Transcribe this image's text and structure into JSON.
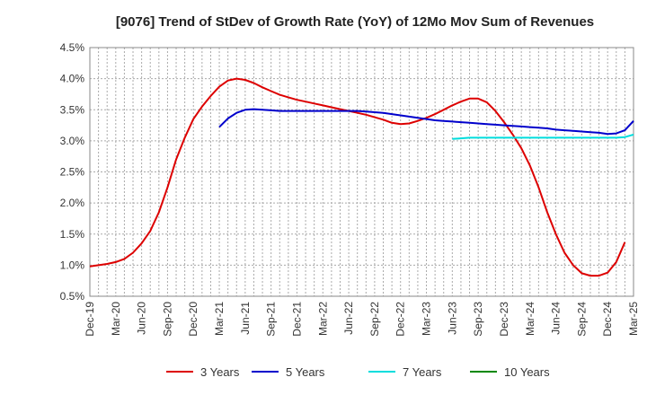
{
  "chart_data": {
    "type": "line",
    "title": "[9076]  Trend of StDev of Growth Rate (YoY) of 12Mo Mov Sum of Revenues",
    "xlabel": "",
    "ylabel": "",
    "ylim": [
      0.5,
      4.5
    ],
    "grid": true,
    "legend_position": "bottom",
    "x_ticks": [
      "Dec-19",
      "Mar-20",
      "Jun-20",
      "Sep-20",
      "Dec-20",
      "Mar-21",
      "Jun-21",
      "Sep-21",
      "Dec-21",
      "Mar-22",
      "Jun-22",
      "Sep-22",
      "Dec-22",
      "Mar-23",
      "Jun-23",
      "Sep-23",
      "Dec-23",
      "Mar-24",
      "Jun-24",
      "Sep-24",
      "Dec-24",
      "Mar-25"
    ],
    "y_ticks": [
      "0.5%",
      "1.0%",
      "1.5%",
      "2.0%",
      "2.5%",
      "3.0%",
      "3.5%",
      "4.0%",
      "4.5%"
    ],
    "y_tick_values": [
      0.5,
      1.0,
      1.5,
      2.0,
      2.5,
      3.0,
      3.5,
      4.0,
      4.5
    ],
    "series": [
      {
        "name": "3 Years",
        "color": "#dd0000",
        "start_index": 0,
        "values": [
          0.98,
          1.0,
          1.02,
          1.05,
          1.1,
          1.2,
          1.35,
          1.55,
          1.85,
          2.25,
          2.7,
          3.05,
          3.35,
          3.55,
          3.72,
          3.87,
          3.97,
          4.0,
          3.98,
          3.93,
          3.86,
          3.8,
          3.74,
          3.7,
          3.66,
          3.63,
          3.6,
          3.57,
          3.54,
          3.51,
          3.48,
          3.45,
          3.42,
          3.38,
          3.34,
          3.29,
          3.27,
          3.28,
          3.32,
          3.37,
          3.43,
          3.5,
          3.57,
          3.63,
          3.68,
          3.68,
          3.62,
          3.48,
          3.3,
          3.1,
          2.88,
          2.6,
          2.25,
          1.85,
          1.5,
          1.2,
          1.0,
          0.87,
          0.83,
          0.83,
          0.88,
          1.05,
          1.37
        ]
      },
      {
        "name": "5 Years",
        "color": "#0000cc",
        "start_index": 15,
        "values": [
          3.22,
          3.36,
          3.45,
          3.5,
          3.51,
          3.5,
          3.49,
          3.48,
          3.48,
          3.48,
          3.48,
          3.48,
          3.48,
          3.48,
          3.48,
          3.48,
          3.48,
          3.47,
          3.46,
          3.45,
          3.43,
          3.41,
          3.39,
          3.37,
          3.35,
          3.33,
          3.32,
          3.31,
          3.3,
          3.29,
          3.28,
          3.27,
          3.26,
          3.25,
          3.24,
          3.23,
          3.22,
          3.21,
          3.2,
          3.18,
          3.17,
          3.16,
          3.15,
          3.14,
          3.13,
          3.11,
          3.12,
          3.17,
          3.32
        ]
      },
      {
        "name": "7 Years",
        "color": "#00dddd",
        "start_index": 42,
        "values": [
          3.03,
          3.04,
          3.05,
          3.05,
          3.05,
          3.05,
          3.05,
          3.05,
          3.05,
          3.05,
          3.05,
          3.05,
          3.05,
          3.05,
          3.05,
          3.05,
          3.05,
          3.05,
          3.05,
          3.05,
          3.06,
          3.1
        ]
      },
      {
        "name": "10 Years",
        "color": "#008800",
        "start_index": 0,
        "values": []
      }
    ]
  }
}
